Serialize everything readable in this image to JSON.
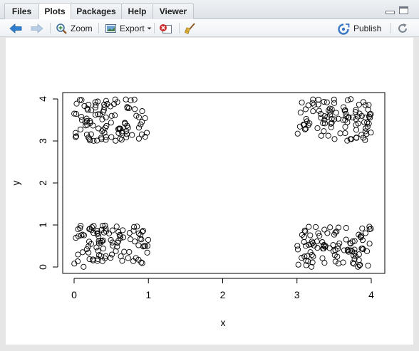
{
  "tabs": [
    {
      "label": "Files"
    },
    {
      "label": "Plots"
    },
    {
      "label": "Packages"
    },
    {
      "label": "Help"
    },
    {
      "label": "Viewer"
    }
  ],
  "toolbar": {
    "zoom_label": "Zoom",
    "export_label": "Export",
    "publish_label": "Publish"
  },
  "icons": {
    "back": "arrow-left-icon",
    "forward": "arrow-right-icon",
    "zoom": "magnifier-icon",
    "export": "export-image-icon",
    "remove": "remove-plot-icon",
    "clear": "broom-icon",
    "publish": "publish-icon",
    "refresh": "refresh-icon"
  },
  "colors": {
    "back_arrow": "#2f7fd0",
    "forward_arrow": "#b8cde4",
    "remove_red": "#cc2a2a",
    "publish_blue": "#3a78c3"
  },
  "chart_data": {
    "type": "scatter",
    "xlabel": "x",
    "ylabel": "y",
    "xlim": [
      0,
      4
    ],
    "ylim": [
      0,
      4
    ],
    "xticks": [
      "0",
      "1",
      "2",
      "3",
      "4"
    ],
    "yticks": [
      "0",
      "1",
      "2",
      "3",
      "4"
    ],
    "clusters": [
      {
        "x_range": [
          0,
          1
        ],
        "y_range": [
          0,
          1
        ],
        "n": 100
      },
      {
        "x_range": [
          0,
          1
        ],
        "y_range": [
          3,
          4
        ],
        "n": 100
      },
      {
        "x_range": [
          3,
          4
        ],
        "y_range": [
          0,
          1
        ],
        "n": 100
      },
      {
        "x_range": [
          3,
          4
        ],
        "y_range": [
          3,
          4
        ],
        "n": 100
      }
    ],
    "marker": "open-circle",
    "grid": false
  }
}
